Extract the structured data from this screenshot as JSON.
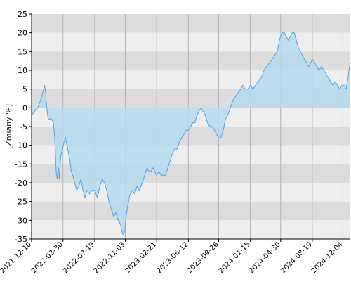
{
  "chart_data": {
    "type": "area",
    "title": "",
    "xlabel": "",
    "ylabel": "[Zmiany %]",
    "ylim": [
      -35,
      25
    ],
    "yticks": [
      25,
      20,
      15,
      10,
      5,
      0,
      -5,
      -10,
      -15,
      -20,
      -25,
      -30,
      -35
    ],
    "xlim": [
      "2021-12-10",
      "2024-12-30"
    ],
    "xtick_labels": [
      "2021-12-10",
      "2022-03-30",
      "2022-07-19",
      "2022-11-03",
      "2023-02-21",
      "2023-06-12",
      "2023-09-26",
      "2024-01-15",
      "2024-04-30",
      "2024-08-19",
      "2024-12-04"
    ],
    "grid": true,
    "legend": "none",
    "colors": {
      "line": "#4da3ea",
      "fill": "#b3dbef",
      "band_dark": "#dcdcdc",
      "band_light": "#eeeeee",
      "vgrid": "#b4b4b4",
      "axis": "#000000"
    },
    "series": [
      {
        "values": [
          [
            "2021-12-10",
            -2
          ],
          [
            "2021-12-20",
            -1
          ],
          [
            "2022-01-01",
            0
          ],
          [
            "2022-01-10",
            2
          ],
          [
            "2022-01-18",
            4
          ],
          [
            "2022-01-24",
            6
          ],
          [
            "2022-01-27",
            5
          ],
          [
            "2022-02-01",
            0
          ],
          [
            "2022-02-06",
            -3
          ],
          [
            "2022-02-12",
            -3
          ],
          [
            "2022-02-18",
            -3
          ],
          [
            "2022-02-24",
            -4
          ],
          [
            "2022-03-01",
            -8
          ],
          [
            "2022-03-04",
            -14
          ],
          [
            "2022-03-07",
            -18
          ],
          [
            "2022-03-10",
            -19
          ],
          [
            "2022-03-14",
            -16
          ],
          [
            "2022-03-17",
            -19
          ],
          [
            "2022-03-22",
            -13
          ],
          [
            "2022-03-28",
            -11
          ],
          [
            "2022-04-03",
            -9
          ],
          [
            "2022-04-08",
            -8
          ],
          [
            "2022-04-13",
            -10
          ],
          [
            "2022-04-18",
            -12
          ],
          [
            "2022-04-23",
            -14
          ],
          [
            "2022-04-28",
            -17
          ],
          [
            "2022-05-03",
            -18
          ],
          [
            "2022-05-10",
            -20
          ],
          [
            "2022-05-17",
            -22
          ],
          [
            "2022-05-24",
            -21
          ],
          [
            "2022-06-01",
            -19
          ],
          [
            "2022-06-08",
            -22
          ],
          [
            "2022-06-15",
            -24
          ],
          [
            "2022-06-22",
            -22
          ],
          [
            "2022-07-01",
            -23
          ],
          [
            "2022-07-10",
            -22
          ],
          [
            "2022-07-19",
            -22
          ],
          [
            "2022-07-28",
            -24
          ],
          [
            "2022-08-06",
            -21
          ],
          [
            "2022-08-14",
            -19
          ],
          [
            "2022-08-22",
            -20
          ],
          [
            "2022-08-30",
            -22
          ],
          [
            "2022-09-07",
            -25
          ],
          [
            "2022-09-15",
            -27
          ],
          [
            "2022-09-23",
            -29
          ],
          [
            "2022-10-01",
            -28
          ],
          [
            "2022-10-09",
            -30
          ],
          [
            "2022-10-17",
            -31
          ],
          [
            "2022-10-22",
            -33
          ],
          [
            "2022-10-27",
            -34
          ],
          [
            "2022-11-01",
            -33
          ],
          [
            "2022-11-06",
            -29
          ],
          [
            "2022-11-12",
            -26
          ],
          [
            "2022-11-20",
            -23
          ],
          [
            "2022-11-28",
            -22
          ],
          [
            "2022-12-06",
            -23
          ],
          [
            "2022-12-14",
            -21
          ],
          [
            "2022-12-22",
            -22
          ],
          [
            "2023-01-02",
            -20
          ],
          [
            "2023-01-10",
            -18
          ],
          [
            "2023-01-18",
            -16
          ],
          [
            "2023-01-24",
            -17
          ],
          [
            "2023-02-01",
            -17
          ],
          [
            "2023-02-08",
            -16
          ],
          [
            "2023-02-14",
            -17
          ],
          [
            "2023-02-21",
            -18
          ],
          [
            "2023-03-01",
            -17
          ],
          [
            "2023-03-08",
            -18
          ],
          [
            "2023-03-16",
            -18
          ],
          [
            "2023-03-24",
            -18
          ],
          [
            "2023-04-01",
            -16
          ],
          [
            "2023-04-10",
            -14
          ],
          [
            "2023-04-18",
            -12
          ],
          [
            "2023-04-26",
            -11
          ],
          [
            "2023-05-04",
            -11
          ],
          [
            "2023-05-12",
            -9
          ],
          [
            "2023-05-20",
            -8
          ],
          [
            "2023-05-28",
            -7
          ],
          [
            "2023-06-05",
            -6
          ],
          [
            "2023-06-12",
            -6
          ],
          [
            "2023-06-20",
            -5
          ],
          [
            "2023-06-28",
            -4
          ],
          [
            "2023-07-05",
            -4
          ],
          [
            "2023-07-12",
            -2
          ],
          [
            "2023-07-19",
            -1
          ],
          [
            "2023-07-26",
            0
          ],
          [
            "2023-08-03",
            -1
          ],
          [
            "2023-08-10",
            -2
          ],
          [
            "2023-08-18",
            -4
          ],
          [
            "2023-08-26",
            -5
          ],
          [
            "2023-09-03",
            -5
          ],
          [
            "2023-09-11",
            -6
          ],
          [
            "2023-09-19",
            -7
          ],
          [
            "2023-09-26",
            -8
          ],
          [
            "2023-10-04",
            -8
          ],
          [
            "2023-10-12",
            -6
          ],
          [
            "2023-10-20",
            -3
          ],
          [
            "2023-10-28",
            -2
          ],
          [
            "2023-11-06",
            0
          ],
          [
            "2023-11-15",
            2
          ],
          [
            "2023-11-24",
            3
          ],
          [
            "2023-12-03",
            4
          ],
          [
            "2023-12-12",
            5
          ],
          [
            "2023-12-20",
            6
          ],
          [
            "2023-12-28",
            5
          ],
          [
            "2024-01-06",
            5
          ],
          [
            "2024-01-15",
            6
          ],
          [
            "2024-01-24",
            5
          ],
          [
            "2024-02-02",
            6
          ],
          [
            "2024-02-12",
            7
          ],
          [
            "2024-02-22",
            8
          ],
          [
            "2024-03-03",
            10
          ],
          [
            "2024-03-12",
            11
          ],
          [
            "2024-03-22",
            12
          ],
          [
            "2024-04-01",
            13
          ],
          [
            "2024-04-10",
            14
          ],
          [
            "2024-04-18",
            15
          ],
          [
            "2024-04-26",
            18
          ],
          [
            "2024-04-30",
            19
          ],
          [
            "2024-05-06",
            20
          ],
          [
            "2024-05-13",
            20
          ],
          [
            "2024-05-20",
            19
          ],
          [
            "2024-05-27",
            18
          ],
          [
            "2024-06-03",
            19
          ],
          [
            "2024-06-10",
            20
          ],
          [
            "2024-06-17",
            20
          ],
          [
            "2024-06-24",
            18
          ],
          [
            "2024-07-01",
            16
          ],
          [
            "2024-07-08",
            15
          ],
          [
            "2024-07-15",
            14
          ],
          [
            "2024-07-22",
            13
          ],
          [
            "2024-07-30",
            12
          ],
          [
            "2024-08-06",
            11
          ],
          [
            "2024-08-13",
            12
          ],
          [
            "2024-08-19",
            13
          ],
          [
            "2024-08-27",
            12
          ],
          [
            "2024-09-04",
            11
          ],
          [
            "2024-09-12",
            10
          ],
          [
            "2024-09-20",
            11
          ],
          [
            "2024-09-28",
            10
          ],
          [
            "2024-10-06",
            9
          ],
          [
            "2024-10-14",
            8
          ],
          [
            "2024-10-22",
            7
          ],
          [
            "2024-10-30",
            6
          ],
          [
            "2024-11-07",
            7
          ],
          [
            "2024-11-15",
            6
          ],
          [
            "2024-11-23",
            5
          ],
          [
            "2024-12-01",
            6
          ],
          [
            "2024-12-09",
            6
          ],
          [
            "2024-12-15",
            5
          ],
          [
            "2024-12-20",
            7
          ],
          [
            "2024-12-25",
            10
          ],
          [
            "2024-12-30",
            12
          ]
        ]
      }
    ]
  }
}
